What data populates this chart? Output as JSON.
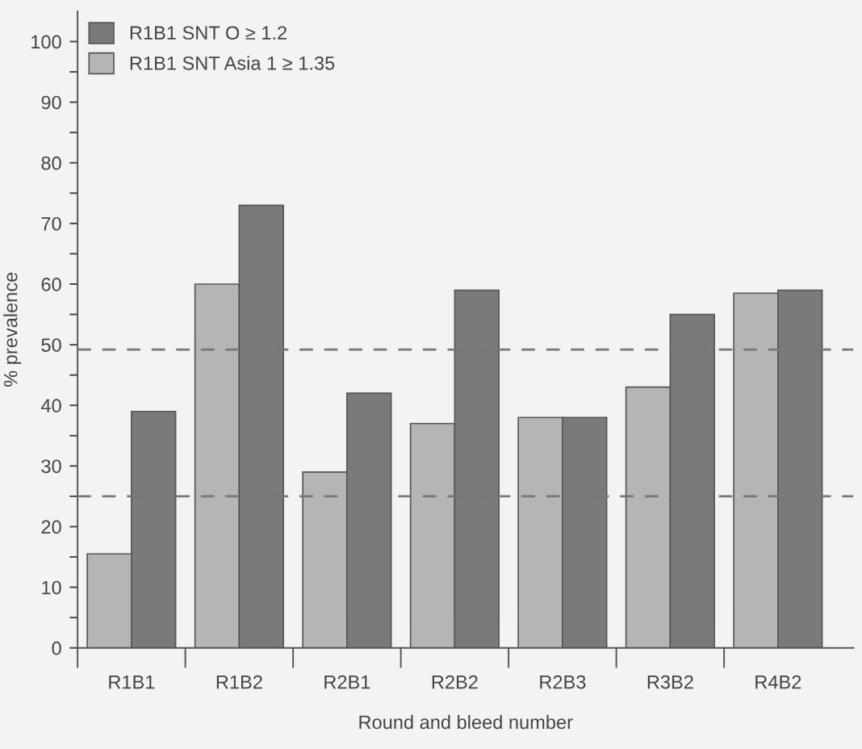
{
  "chart_data": {
    "type": "bar",
    "xlabel": "Round and bleed number",
    "ylabel": "% prevalence",
    "categories": [
      "R1B1",
      "R1B2",
      "R2B1",
      "R2B2",
      "R2B3",
      "R3B2",
      "R4B2"
    ],
    "series": [
      {
        "name": "R1B1 SNT Asia 1 ≥ 1.35",
        "color": "#b5b5b5",
        "values": [
          15.5,
          60,
          29,
          37,
          38,
          43,
          58.5
        ]
      },
      {
        "name": "R1B1 SNT O ≥ 1.2",
        "color": "#7a7a7a",
        "values": [
          39,
          73,
          42,
          59,
          38,
          55,
          59
        ]
      }
    ],
    "ylim": [
      0,
      105
    ],
    "yticks": [
      0,
      {
        "value": 5,
        "label": null
      },
      10,
      {
        "value": 15,
        "label": null
      },
      20,
      {
        "value": 25,
        "label": null
      },
      30,
      {
        "value": 35,
        "label": null
      },
      40,
      {
        "value": 45,
        "label": null
      },
      50,
      {
        "value": 55,
        "label": null
      },
      60,
      {
        "value": 65,
        "label": null
      },
      70,
      {
        "value": 75,
        "label": null
      },
      80,
      {
        "value": 85,
        "label": null
      },
      90,
      {
        "value": 95,
        "label": null
      },
      100
    ],
    "ref_lines": [
      {
        "axis": "y",
        "value": 49.2,
        "color": "#777777",
        "line_style": "dashed"
      },
      {
        "axis": "y",
        "value": 25,
        "color": "#777777",
        "line_style": "dashed"
      }
    ],
    "grid": false,
    "legend": "top left"
  }
}
